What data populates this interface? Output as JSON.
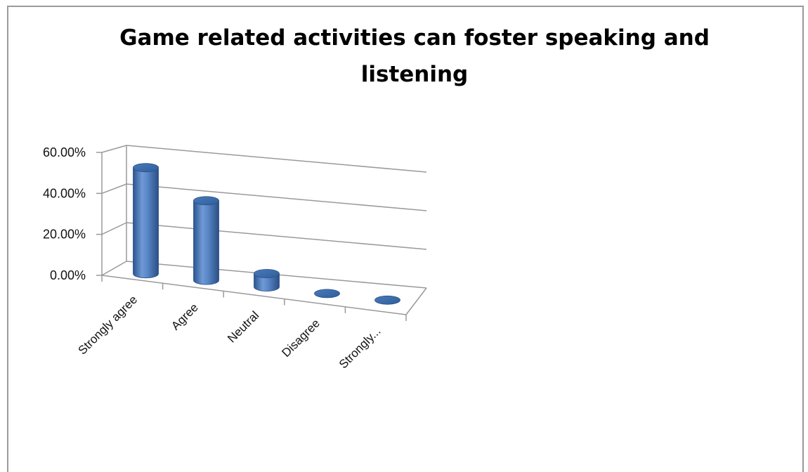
{
  "chart_data": {
    "type": "bar",
    "style": "3d-cylinder",
    "title": "Game related activities can foster speaking and listening",
    "categories": [
      "Strongly agree",
      "Agree",
      "Neutral",
      "Disagree",
      "Strongly..."
    ],
    "values": [
      53.3,
      40.0,
      6.7,
      0.0,
      0.0
    ],
    "ylim": [
      0,
      60
    ],
    "yticks": [
      0,
      20,
      40,
      60
    ],
    "ytick_labels": [
      "0.00%",
      "20.00%",
      "40.00%",
      "60.00%"
    ],
    "xlabel": "",
    "ylabel": "",
    "grid": true,
    "legend": "none",
    "bar_color": "#4f81bd"
  }
}
